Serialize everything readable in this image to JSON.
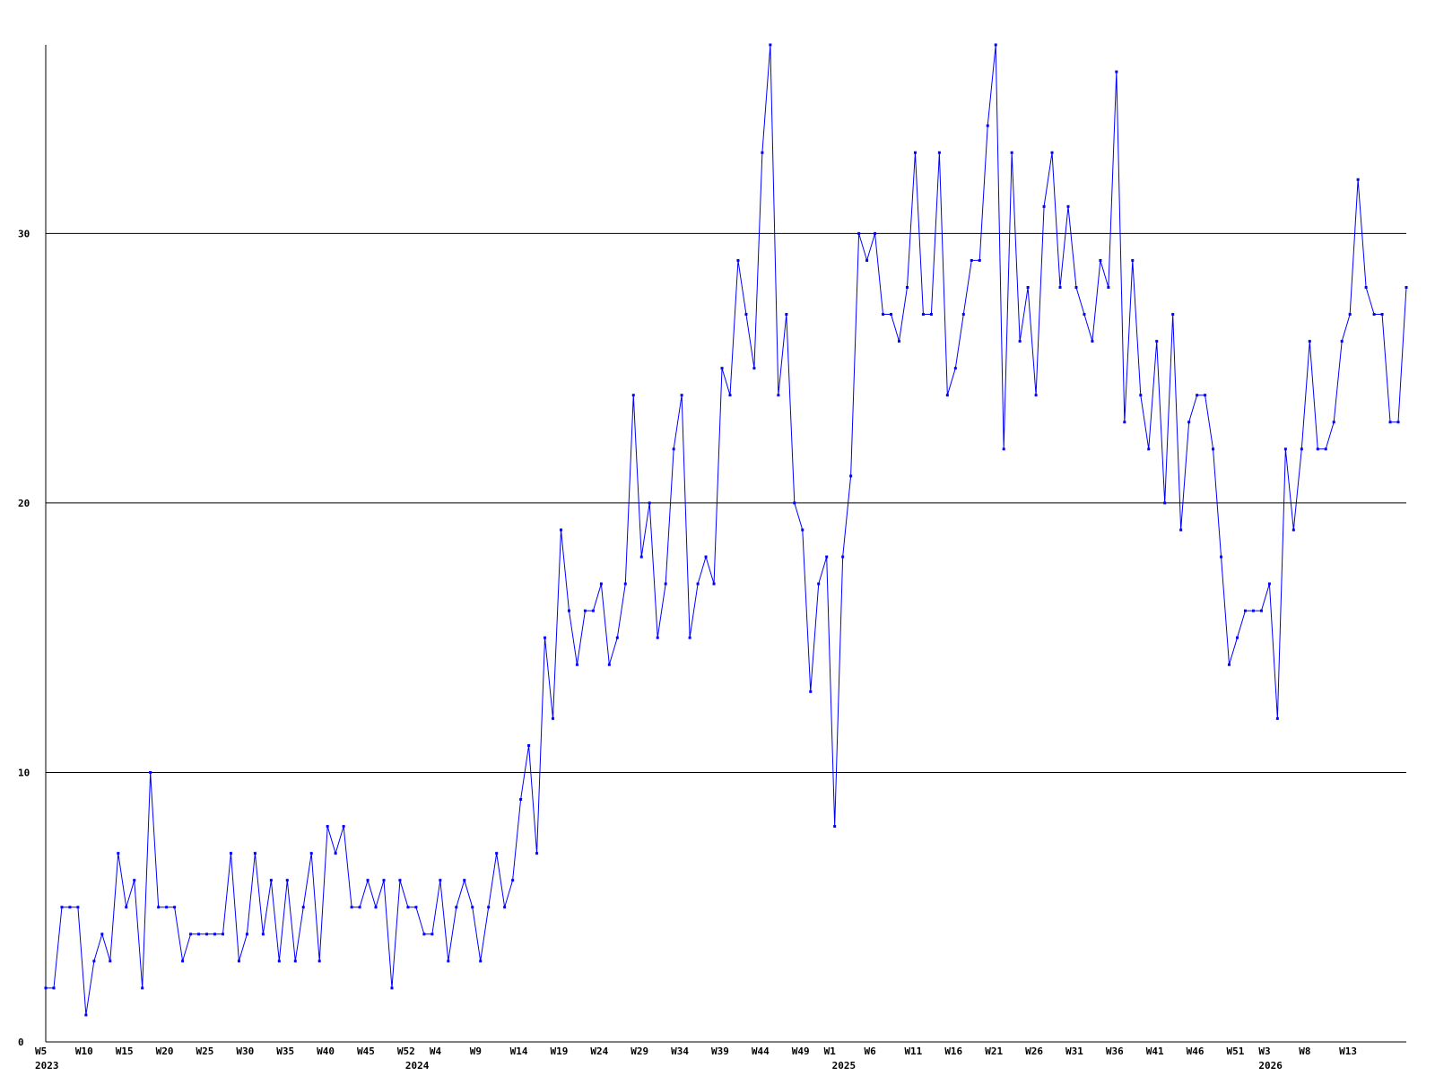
{
  "chart_data": {
    "type": "line",
    "title": "",
    "xlabel": "",
    "ylabel": "",
    "ylim": [
      0,
      37
    ],
    "y_ticks": [
      0,
      10,
      20,
      30
    ],
    "grid": "horizontal",
    "colors": {
      "line": "#0000ff",
      "grid": "#000000",
      "axis": "#000000",
      "text": "#000000"
    },
    "x_ticks": [
      {
        "index": 0,
        "label": "W5"
      },
      {
        "index": 5,
        "label": "W10"
      },
      {
        "index": 10,
        "label": "W15"
      },
      {
        "index": 15,
        "label": "W20"
      },
      {
        "index": 20,
        "label": "W25"
      },
      {
        "index": 25,
        "label": "W30"
      },
      {
        "index": 30,
        "label": "W35"
      },
      {
        "index": 35,
        "label": "W40"
      },
      {
        "index": 40,
        "label": "W45"
      },
      {
        "index": 45,
        "label": "W52"
      },
      {
        "index": 49,
        "label": "W4"
      },
      {
        "index": 54,
        "label": "W9"
      },
      {
        "index": 59,
        "label": "W14"
      },
      {
        "index": 64,
        "label": "W19"
      },
      {
        "index": 69,
        "label": "W24"
      },
      {
        "index": 74,
        "label": "W29"
      },
      {
        "index": 79,
        "label": "W34"
      },
      {
        "index": 84,
        "label": "W39"
      },
      {
        "index": 89,
        "label": "W44"
      },
      {
        "index": 94,
        "label": "W49"
      },
      {
        "index": 98,
        "label": "W1"
      },
      {
        "index": 103,
        "label": "W6"
      },
      {
        "index": 108,
        "label": "W11"
      },
      {
        "index": 113,
        "label": "W16"
      },
      {
        "index": 118,
        "label": "W21"
      },
      {
        "index": 123,
        "label": "W26"
      },
      {
        "index": 128,
        "label": "W31"
      },
      {
        "index": 133,
        "label": "W36"
      },
      {
        "index": 138,
        "label": "W41"
      },
      {
        "index": 143,
        "label": "W46"
      },
      {
        "index": 148,
        "label": "W51"
      },
      {
        "index": 152,
        "label": "W3"
      },
      {
        "index": 157,
        "label": "W8"
      },
      {
        "index": 162,
        "label": "W13"
      }
    ],
    "year_labels": [
      {
        "index": 0,
        "label": "2023"
      },
      {
        "index": 46,
        "label": "2024"
      },
      {
        "index": 99,
        "label": "2025"
      },
      {
        "index": 152,
        "label": "2026"
      }
    ],
    "series": [
      {
        "values": [
          2,
          2,
          5,
          5,
          5,
          1,
          3,
          4,
          3,
          7,
          5,
          6,
          2,
          10,
          5,
          5,
          5,
          3,
          4,
          4,
          4,
          4,
          4,
          7,
          3,
          4,
          7,
          4,
          6,
          3,
          6,
          3,
          5,
          7,
          3,
          8,
          7,
          8,
          5,
          5,
          6,
          5,
          6,
          2,
          6,
          5,
          5,
          4,
          4,
          6,
          3,
          5,
          6,
          5,
          3,
          5,
          7,
          5,
          6,
          9,
          11,
          7,
          15,
          12,
          19,
          16,
          14,
          16,
          16,
          17,
          14,
          15,
          17,
          24,
          18,
          20,
          15,
          17,
          22,
          24,
          15,
          17,
          18,
          17,
          25,
          24,
          29,
          27,
          25,
          33,
          37,
          24,
          27,
          20,
          19,
          13,
          17,
          18,
          8,
          18,
          21,
          30,
          29,
          30,
          27,
          27,
          26,
          28,
          33,
          27,
          27,
          33,
          24,
          25,
          27,
          29,
          29,
          34,
          37,
          22,
          33,
          26,
          28,
          24,
          31,
          33,
          28,
          31,
          28,
          27,
          26,
          29,
          28,
          36,
          23,
          29,
          24,
          22,
          26,
          20,
          27,
          19,
          23,
          24,
          24,
          22,
          18,
          14,
          15,
          16,
          16,
          16,
          17,
          12,
          22,
          19,
          22,
          26,
          22,
          22,
          23,
          26,
          27,
          32,
          28,
          27,
          27,
          23,
          23,
          28
        ]
      }
    ]
  }
}
